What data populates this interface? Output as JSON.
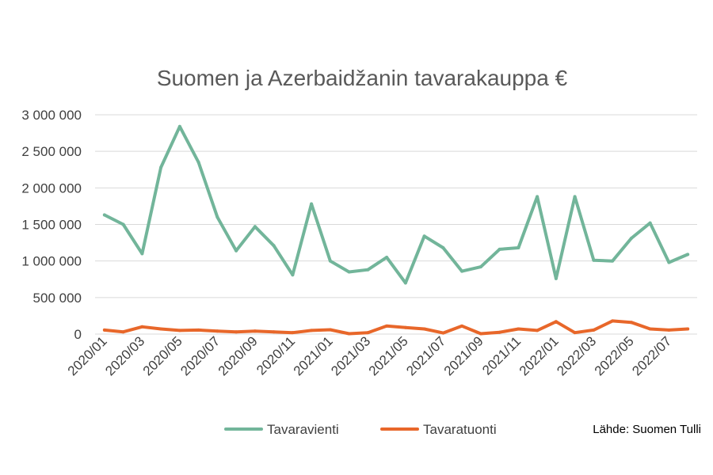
{
  "chart_data": {
    "type": "line",
    "title": "Suomen ja Azerbaidžanin tavarakauppa €",
    "source_note": "Lähde: Suomen Tulli",
    "xlabel": "",
    "ylabel": "",
    "ylim": [
      0,
      3000000
    ],
    "y_ticks": [
      0,
      500000,
      1000000,
      1500000,
      2000000,
      2500000,
      3000000
    ],
    "y_tick_labels": [
      "0",
      "500 000",
      "1 000 000",
      "1 500 000",
      "2 000 000",
      "2 500 000",
      "3 000 000"
    ],
    "grid": "horizontal",
    "legend_position": "bottom",
    "x": [
      "2020/01",
      "2020/02",
      "2020/03",
      "2020/04",
      "2020/05",
      "2020/06",
      "2020/07",
      "2020/08",
      "2020/09",
      "2020/10",
      "2020/11",
      "2020/12",
      "2021/01",
      "2021/02",
      "2021/03",
      "2021/04",
      "2021/05",
      "2021/06",
      "2021/07",
      "2021/08",
      "2021/09",
      "2021/10",
      "2021/11",
      "2021/12",
      "2022/01",
      "2022/02",
      "2022/03",
      "2022/04",
      "2022/05",
      "2022/06",
      "2022/07",
      "2022/08"
    ],
    "x_tick_labels": [
      "2020/01",
      "2020/03",
      "2020/05",
      "2020/07",
      "2020/09",
      "2020/11",
      "2021/01",
      "2021/03",
      "2021/05",
      "2021/07",
      "2021/09",
      "2021/11",
      "2022/01",
      "2022/03",
      "2022/05",
      "2022/07"
    ],
    "series": [
      {
        "name": "Tavaravienti",
        "color": "#72b59a",
        "values": [
          1630000,
          1500000,
          1100000,
          2280000,
          2840000,
          2350000,
          1600000,
          1140000,
          1470000,
          1210000,
          810000,
          1780000,
          1000000,
          850000,
          880000,
          1050000,
          700000,
          1340000,
          1180000,
          860000,
          920000,
          1160000,
          1180000,
          1880000,
          760000,
          1880000,
          1010000,
          1000000,
          1310000,
          1520000,
          980000,
          1090000
        ]
      },
      {
        "name": "Tavaratuonti",
        "color": "#e8672a",
        "values": [
          55000,
          30000,
          100000,
          70000,
          50000,
          55000,
          40000,
          30000,
          40000,
          30000,
          20000,
          50000,
          60000,
          5000,
          20000,
          110000,
          90000,
          70000,
          15000,
          110000,
          5000,
          25000,
          70000,
          50000,
          170000,
          20000,
          55000,
          180000,
          160000,
          70000,
          55000,
          70000
        ]
      }
    ]
  }
}
